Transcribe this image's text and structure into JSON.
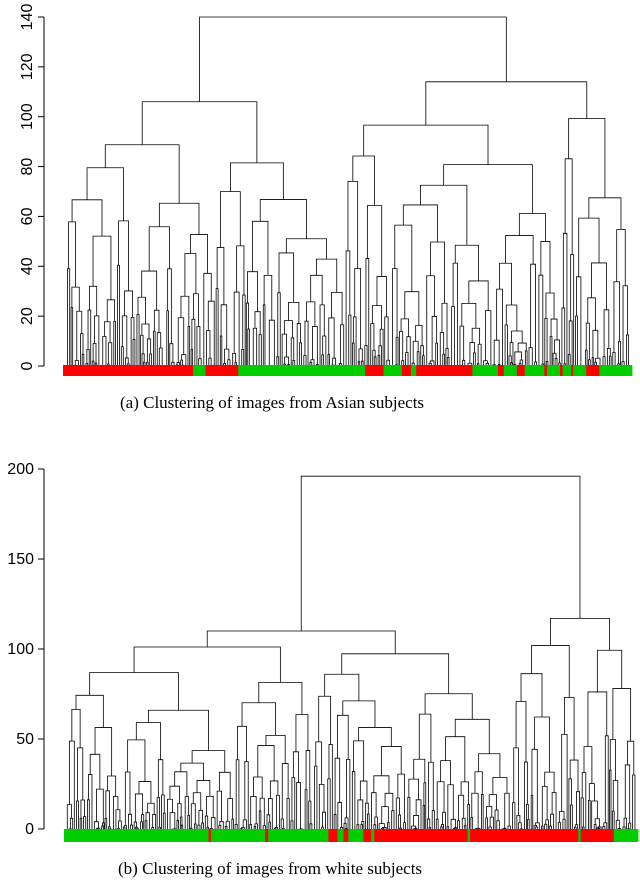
{
  "chart_data": [
    {
      "type": "dendrogram",
      "caption": "(a)  Clustering of images from Asian subjects",
      "ylim": [
        0,
        140
      ],
      "yticks": [
        0,
        20,
        40,
        60,
        80,
        100,
        120,
        140
      ],
      "grid": false,
      "top_merge_height": 140,
      "main_merges": [
        {
          "height": 140,
          "label": "root"
        },
        {
          "height": 114,
          "label": "right-root"
        },
        {
          "height": 106,
          "label": "left-red-cluster"
        },
        {
          "height": 104
        },
        {
          "height": 96
        },
        {
          "height": 92
        },
        {
          "height": 89
        },
        {
          "height": 87
        }
      ],
      "leaf_color_runs": [
        {
          "color": "#ff0000",
          "fraction": 0.199
        },
        {
          "color": "#00cc00",
          "fraction": 0.019
        },
        {
          "color": "#ff0000",
          "fraction": 0.05
        },
        {
          "color": "#00cc00",
          "fraction": 0.194
        },
        {
          "color": "#ff0000",
          "fraction": 0.028
        },
        {
          "color": "#00cc00",
          "fraction": 0.028
        },
        {
          "color": "#ff0000",
          "fraction": 0.014
        },
        {
          "color": "#00cc00",
          "fraction": 0.008
        },
        {
          "color": "#ff0000",
          "fraction": 0.086
        },
        {
          "color": "#00cc00",
          "fraction": 0.039
        },
        {
          "color": "#ff0000",
          "fraction": 0.009
        },
        {
          "color": "#00cc00",
          "fraction": 0.02
        },
        {
          "color": "#ff0000",
          "fraction": 0.012
        },
        {
          "color": "#00cc00",
          "fraction": 0.03
        },
        {
          "color": "#ff0000",
          "fraction": 0.004
        },
        {
          "color": "#00cc00",
          "fraction": 0.02
        },
        {
          "color": "#ff0000",
          "fraction": 0.004
        },
        {
          "color": "#00cc00",
          "fraction": 0.013
        },
        {
          "color": "#ff0000",
          "fraction": 0.003
        },
        {
          "color": "#00cc00",
          "fraction": 0.02
        },
        {
          "color": "#ff0000",
          "fraction": 0.02
        },
        {
          "color": "#00cc00",
          "fraction": 0.05
        }
      ]
    },
    {
      "type": "dendrogram",
      "caption": "(b)  Clustering of images from white subjects",
      "ylim": [
        0,
        200
      ],
      "yticks": [
        0,
        50,
        100,
        150,
        200
      ],
      "grid": false,
      "top_merge_height": 196,
      "main_merges": [
        {
          "height": 196,
          "label": "root"
        },
        {
          "height": 117,
          "label": "right-red-cluster"
        },
        {
          "height": 110,
          "label": "left-green-cluster"
        },
        {
          "height": 106
        },
        {
          "height": 103
        },
        {
          "height": 102
        },
        {
          "height": 96
        },
        {
          "height": 81
        }
      ],
      "leaf_color_runs": [
        {
          "color": "#00cc00",
          "fraction": 0.24
        },
        {
          "color": "#ff0000",
          "fraction": 0.004
        },
        {
          "color": "#00cc00",
          "fraction": 0.09
        },
        {
          "color": "#ff0000",
          "fraction": 0.005
        },
        {
          "color": "#00cc00",
          "fraction": 0.1
        },
        {
          "color": "#ff0000",
          "fraction": 0.015
        },
        {
          "color": "#00cc00",
          "fraction": 0.01
        },
        {
          "color": "#ff0000",
          "fraction": 0.008
        },
        {
          "color": "#00cc00",
          "fraction": 0.025
        },
        {
          "color": "#ff0000",
          "fraction": 0.013
        },
        {
          "color": "#00cc00",
          "fraction": 0.005
        },
        {
          "color": "#ff0000",
          "fraction": 0.155
        },
        {
          "color": "#00cc00",
          "fraction": 0.004
        },
        {
          "color": "#ff0000",
          "fraction": 0.18
        },
        {
          "color": "#00cc00",
          "fraction": 0.004
        },
        {
          "color": "#ff0000",
          "fraction": 0.055
        },
        {
          "color": "#00cc00",
          "fraction": 0.04
        }
      ]
    }
  ]
}
